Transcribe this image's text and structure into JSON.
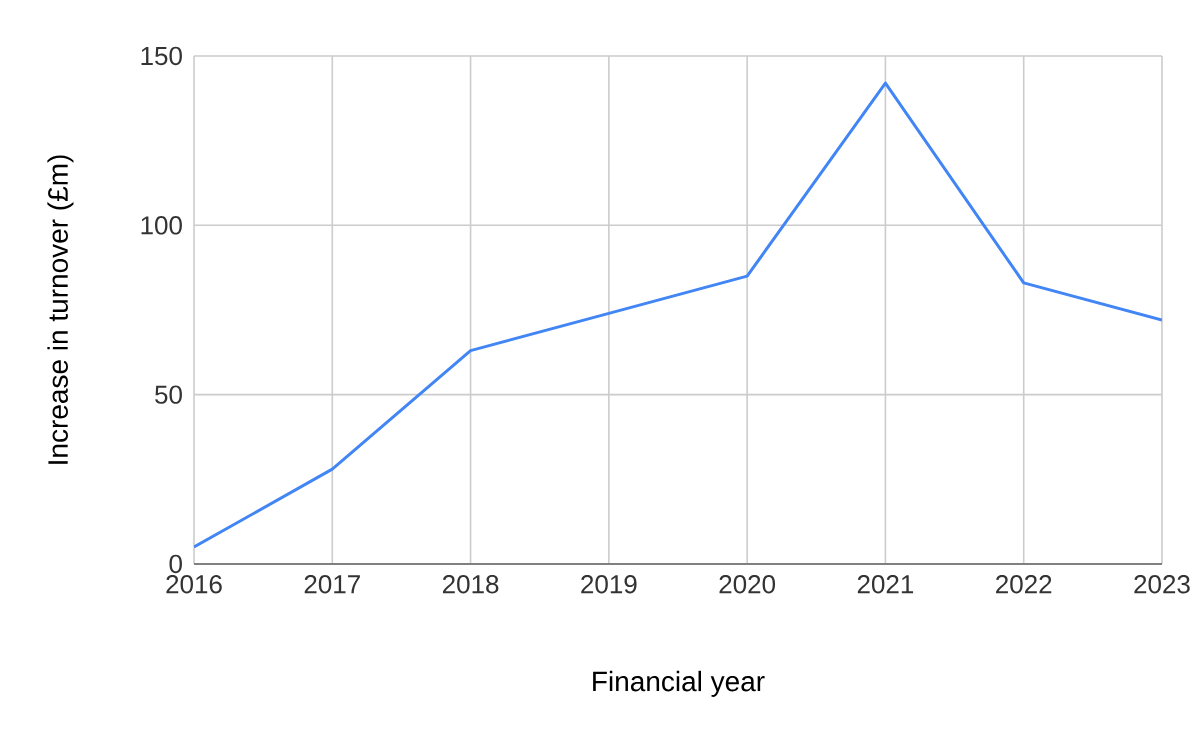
{
  "chart_data": {
    "type": "line",
    "xlabel": "Financial year",
    "ylabel": "Increase in turnover (£m)",
    "x": [
      2016,
      2017,
      2018,
      2019,
      2020,
      2021,
      2022,
      2023
    ],
    "series": [
      {
        "color": "#4285f4",
        "values": [
          5,
          28,
          63,
          74,
          85,
          142,
          83,
          72
        ]
      }
    ],
    "xlim": [
      2016,
      2023
    ],
    "xticks": [
      2016,
      2017,
      2018,
      2019,
      2020,
      2021,
      2022,
      2023
    ],
    "ylim": [
      0,
      150
    ],
    "yticks": [
      0,
      50,
      100,
      150
    ],
    "grid": true,
    "marker": "none",
    "line_style": "solid"
  }
}
